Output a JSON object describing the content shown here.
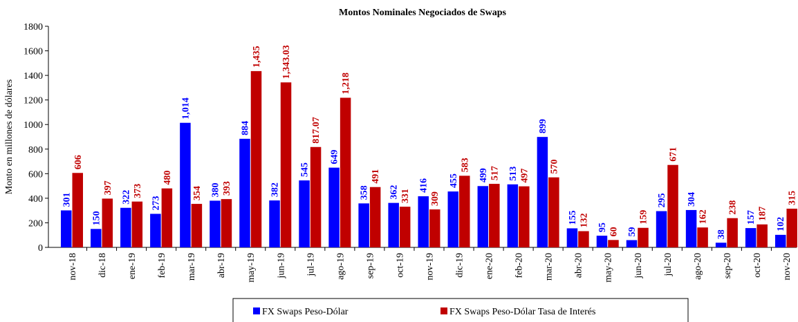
{
  "chart_data": {
    "type": "bar",
    "title": "Montos Nominales Negociados de Swaps",
    "y_label": "Monto en millones de dólares",
    "categories": [
      "nov-18",
      "dic-18",
      "ene-19",
      "feb-19",
      "mar-19",
      "abr-19",
      "may-19",
      "jun-19",
      "jul-19",
      "ago-19",
      "sep-19",
      "oct-19",
      "nov-19",
      "dic-19",
      "ene-20",
      "feb-20",
      "mar-20",
      "abr-20",
      "may-20",
      "jun-20",
      "jul-20",
      "ago-20",
      "sep-20",
      "oct-20",
      "nov-20"
    ],
    "series": [
      {
        "name": "FX Swaps Peso-Dólar",
        "color": "#0000ff",
        "values": [
          301,
          150,
          322,
          273,
          1014,
          380,
          884,
          382,
          545,
          649,
          358,
          362,
          416,
          455,
          499,
          513,
          899,
          155,
          95,
          59,
          295,
          304,
          38,
          157,
          102
        ],
        "value_labels": [
          "301",
          "150",
          "322",
          "273",
          "1,014",
          "380",
          "884",
          "382",
          "545",
          "649",
          "358",
          "362",
          "416",
          "455",
          "499",
          "513",
          "899",
          "155",
          "95",
          "59",
          "295",
          "304",
          "38",
          "157",
          "102"
        ]
      },
      {
        "name": "FX Swaps Peso-Dólar Tasa de Interés",
        "color": "#c00000",
        "values": [
          606,
          397,
          373,
          480,
          354,
          393,
          1435,
          1343.03,
          817.07,
          1218,
          491,
          331,
          309,
          583,
          517,
          497,
          570,
          132,
          60,
          159,
          671,
          162,
          238,
          187,
          315
        ],
        "value_labels": [
          "606",
          "397",
          "373",
          "480",
          "354",
          "393",
          "1,435",
          "1,343.03",
          "817.07",
          "1,218",
          "491",
          "331",
          "309",
          "583",
          "517",
          "497",
          "570",
          "132",
          "60",
          "159",
          "671",
          "162",
          "238",
          "187",
          "315"
        ]
      }
    ],
    "ylim": [
      0,
      1800
    ],
    "yticks": [
      0,
      200,
      400,
      600,
      800,
      1000,
      1200,
      1400,
      1600,
      1800
    ],
    "legend": "bottom"
  }
}
